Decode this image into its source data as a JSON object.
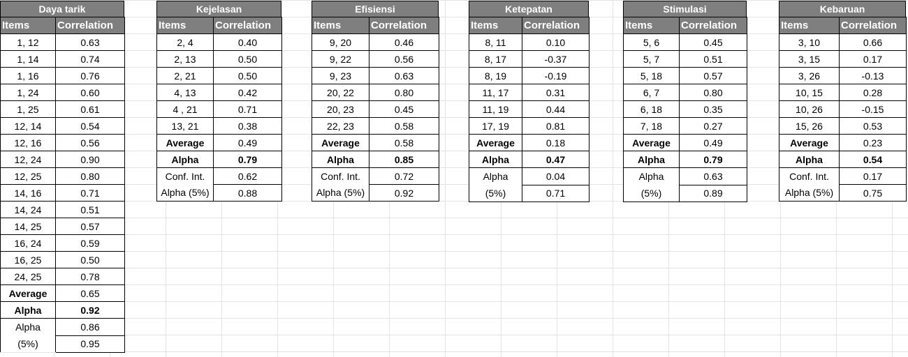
{
  "header_items": "Items",
  "header_corr": "Correlation",
  "tables": [
    {
      "title": "Daya tarik",
      "rows": [
        [
          "1, 12",
          "0.63"
        ],
        [
          "1, 14",
          "0.74"
        ],
        [
          "1, 16",
          "0.76"
        ],
        [
          "1, 24",
          "0.60"
        ],
        [
          "1, 25",
          "0.61"
        ],
        [
          "12, 14",
          "0.54"
        ],
        [
          "12, 16",
          "0.56"
        ],
        [
          "12, 24",
          "0.90"
        ],
        [
          "12, 25",
          "0.80"
        ],
        [
          "14, 16",
          "0.71"
        ],
        [
          "14, 24",
          "0.51"
        ],
        [
          "14, 25",
          "0.57"
        ],
        [
          "16, 24",
          "0.59"
        ],
        [
          "16, 25",
          "0.50"
        ],
        [
          "24, 25",
          "0.78"
        ]
      ],
      "average": "0.65",
      "alpha": "0.92",
      "conf_label_1": "Alpha",
      "conf_label_2": "(5%)",
      "conf_low": "0.86",
      "conf_high": "0.95"
    },
    {
      "title": "Kejelasan",
      "rows": [
        [
          "2, 4",
          "0.40"
        ],
        [
          "2, 13",
          "0.50"
        ],
        [
          "2, 21",
          "0.50"
        ],
        [
          "4, 13",
          "0.42"
        ],
        [
          "4 , 21",
          "0.71"
        ],
        [
          "13, 21",
          "0.38"
        ]
      ],
      "average": "0.49",
      "alpha": "0.79",
      "conf_label_1": "Conf. Int.",
      "conf_label_2": "Alpha (5%)",
      "conf_low": "0.62",
      "conf_high": "0.88"
    },
    {
      "title": "Efisiensi",
      "rows": [
        [
          "9, 20",
          "0.46"
        ],
        [
          "9, 22",
          "0.56"
        ],
        [
          "9, 23",
          "0.63"
        ],
        [
          "20, 22",
          "0.80"
        ],
        [
          "20, 23",
          "0.45"
        ],
        [
          "22, 23",
          "0.58"
        ]
      ],
      "average": "0.58",
      "alpha": "0.85",
      "conf_label_1": "Conf. Int.",
      "conf_label_2": "Alpha (5%)",
      "conf_low": "0.72",
      "conf_high": "0.92"
    },
    {
      "title": "Ketepatan",
      "rows": [
        [
          "8, 11",
          "0.10"
        ],
        [
          "8, 17",
          "-0.37"
        ],
        [
          "8, 19",
          "-0.19"
        ],
        [
          "11, 17",
          "0.31"
        ],
        [
          "11, 19",
          "0.44"
        ],
        [
          "17, 19",
          "0.81"
        ]
      ],
      "average": "0.18",
      "alpha": "0.47",
      "conf_label_1": "Alpha",
      "conf_label_2": "(5%)",
      "conf_low": "0.04",
      "conf_high": "0.71"
    },
    {
      "title": "Stimulasi",
      "rows": [
        [
          "5, 6",
          "0.45"
        ],
        [
          "5, 7",
          "0.51"
        ],
        [
          "5, 18",
          "0.57"
        ],
        [
          "6, 7",
          "0.80"
        ],
        [
          "6, 18",
          "0.35"
        ],
        [
          "7, 18",
          "0.27"
        ]
      ],
      "average": "0.49",
      "alpha": "0.79",
      "conf_label_1": "Alpha",
      "conf_label_2": "(5%)",
      "conf_low": "0.63",
      "conf_high": "0.89"
    },
    {
      "title": "Kebaruan",
      "rows": [
        [
          "3, 10",
          "0.66"
        ],
        [
          "3, 15",
          "0.17"
        ],
        [
          "3, 26",
          "-0.13"
        ],
        [
          "10, 15",
          "0.28"
        ],
        [
          "10, 26",
          "-0.15"
        ],
        [
          "15, 26",
          "0.53"
        ]
      ],
      "average": "0.23",
      "alpha": "0.54",
      "conf_label_1": "Conf. Int.",
      "conf_label_2": "Alpha (5%)",
      "conf_low": "0.17",
      "conf_high": "0.75"
    }
  ],
  "labels": {
    "average": "Average",
    "alpha": "Alpha"
  }
}
